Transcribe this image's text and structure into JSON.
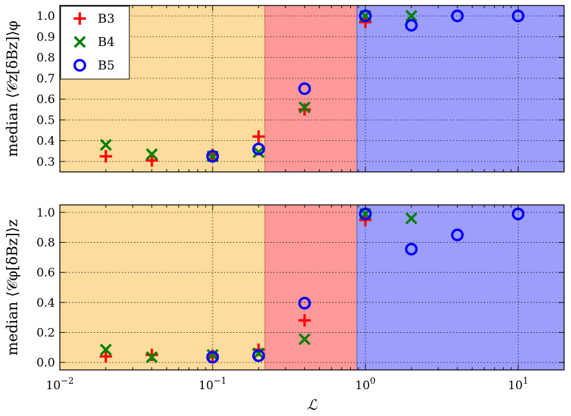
{
  "chart_data": [
    {
      "type": "scatter",
      "xscale": "log",
      "xlim": [
        0.01,
        20
      ],
      "ylim": [
        0.25,
        1.05
      ],
      "ylabel": "median ⟨𝒞z[δBz]⟩φ",
      "yticks": [
        0.3,
        0.4,
        0.5,
        0.6,
        0.7,
        0.8,
        0.9,
        1.0
      ],
      "ytick_labels": [
        "0.3",
        "0.4",
        "0.5",
        "0.6",
        "0.7",
        "0.8",
        "0.9",
        "1.0"
      ],
      "grid": true,
      "legend_position": "top-left",
      "regions": [
        {
          "x0": 0.01,
          "x1": 0.22,
          "color": "#fddc9d"
        },
        {
          "x0": 0.22,
          "x1": 0.88,
          "color": "#fd9999"
        },
        {
          "x0": 0.88,
          "x1": 20,
          "color": "#9d9dfc"
        }
      ],
      "series": [
        {
          "name": "B3",
          "marker": "plus",
          "color": "#ff0000",
          "x": [
            0.02,
            0.04,
            0.1,
            0.2,
            0.4,
            1.0
          ],
          "y": [
            0.325,
            0.305,
            0.33,
            0.42,
            0.55,
            0.97
          ]
        },
        {
          "name": "B4",
          "marker": "x",
          "color": "#007f00",
          "x": [
            0.02,
            0.04,
            0.1,
            0.2,
            0.4,
            1.0,
            2.0
          ],
          "y": [
            0.38,
            0.335,
            0.325,
            0.345,
            0.56,
            1.0,
            1.0
          ]
        },
        {
          "name": "B5",
          "marker": "circle",
          "color": "#0000ff",
          "x": [
            0.1,
            0.2,
            0.4,
            1.0,
            2.0,
            4.0,
            10.0
          ],
          "y": [
            0.325,
            0.36,
            0.65,
            1.0,
            0.955,
            1.0,
            1.0
          ]
        }
      ]
    },
    {
      "type": "scatter",
      "xscale": "log",
      "xlim": [
        0.01,
        20
      ],
      "ylim": [
        -0.05,
        1.05
      ],
      "xlabel": "ℒ",
      "ylabel": "median ⟨𝒞φ[δBz]⟩z",
      "yticks": [
        0.0,
        0.2,
        0.4,
        0.6,
        0.8,
        1.0
      ],
      "ytick_labels": [
        "0.0",
        "0.2",
        "0.4",
        "0.6",
        "0.8",
        "1.0"
      ],
      "xticks": [
        0.01,
        0.1,
        1,
        10
      ],
      "grid": true,
      "regions": [
        {
          "x0": 0.01,
          "x1": 0.22,
          "color": "#fddc9d"
        },
        {
          "x0": 0.22,
          "x1": 0.88,
          "color": "#fd9999"
        },
        {
          "x0": 0.88,
          "x1": 20,
          "color": "#9d9dfc"
        }
      ],
      "series": [
        {
          "name": "B3",
          "marker": "plus",
          "color": "#ff0000",
          "x": [
            0.02,
            0.04,
            0.1,
            0.2,
            0.4,
            1.0
          ],
          "y": [
            0.04,
            0.05,
            0.045,
            0.085,
            0.28,
            0.95
          ]
        },
        {
          "name": "B4",
          "marker": "x",
          "color": "#007f00",
          "x": [
            0.02,
            0.04,
            0.1,
            0.2,
            0.4,
            1.0,
            2.0
          ],
          "y": [
            0.085,
            0.035,
            0.05,
            0.06,
            0.155,
            0.99,
            0.96
          ]
        },
        {
          "name": "B5",
          "marker": "circle",
          "color": "#0000ff",
          "x": [
            0.1,
            0.2,
            1.0,
            2.0,
            4.0,
            10.0,
            0.4
          ],
          "y": [
            0.035,
            0.045,
            0.99,
            0.755,
            0.85,
            0.99,
            0.395
          ]
        }
      ]
    }
  ]
}
